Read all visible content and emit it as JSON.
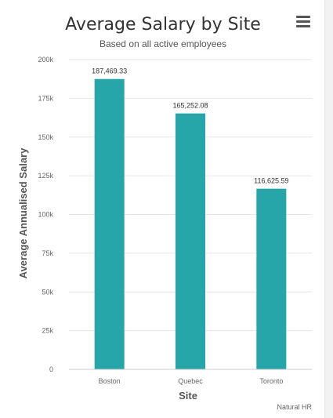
{
  "menu": {
    "icon": "hamburger-menu-icon"
  },
  "credit": "Natural HR",
  "chart_data": {
    "type": "bar",
    "title": "Average Salary by Site",
    "subtitle": "Based on all active employees",
    "xlabel": "Site",
    "ylabel": "Average Annualised Salary",
    "categories": [
      "Boston",
      "Quebec",
      "Toronto"
    ],
    "values": [
      187469.33,
      165252.08,
      116625.59
    ],
    "value_labels": [
      "187,469.33",
      "165,252.08",
      "116,625.59"
    ],
    "ylim": [
      0,
      200000
    ],
    "y_ticks": [
      0,
      25000,
      50000,
      75000,
      100000,
      125000,
      150000,
      175000,
      200000
    ],
    "y_tick_labels": [
      "0",
      "25k",
      "50k",
      "75k",
      "100k",
      "125k",
      "150k",
      "175k",
      "200k"
    ],
    "grid": true,
    "legend": "none",
    "bar_color": "#26a6a8"
  }
}
